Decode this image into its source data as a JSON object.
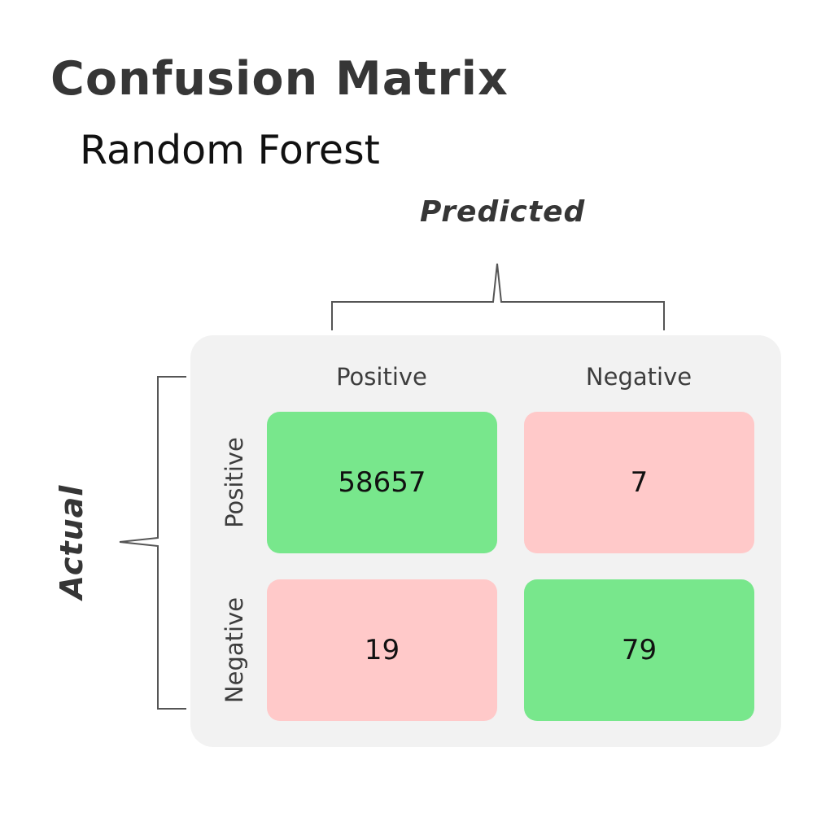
{
  "chart_data": {
    "type": "heatmap",
    "title": "Confusion Matrix",
    "subtitle": "Random Forest",
    "xlabel": "Predicted",
    "ylabel": "Actual",
    "x_categories": [
      "Positive",
      "Negative"
    ],
    "y_categories": [
      "Positive",
      "Negative"
    ],
    "values": [
      [
        58657,
        7
      ],
      [
        19,
        79
      ]
    ],
    "colors": {
      "correct": "#78e78c",
      "incorrect": "#ffc9c9",
      "panel": "#f2f2f2",
      "text": "#363636"
    }
  }
}
